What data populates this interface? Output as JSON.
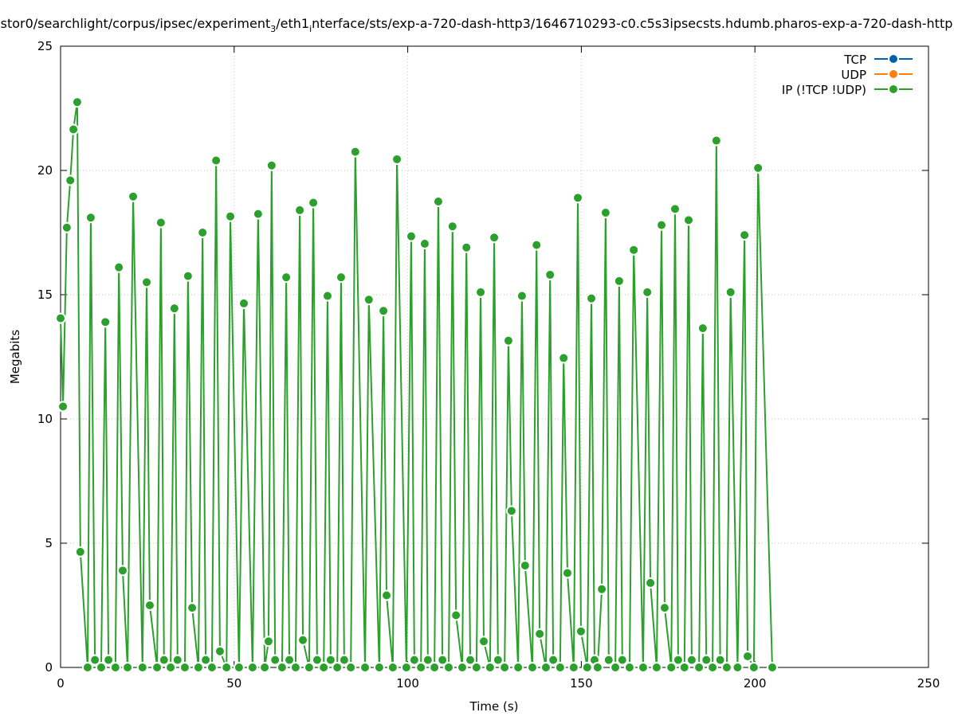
{
  "chart_data": {
    "type": "line",
    "title_parts": [
      {
        "text": "stor0/searchlight/corpus/ipsec/experiment",
        "sub": false
      },
      {
        "text": "3",
        "sub": true
      },
      {
        "text": "/eth1",
        "sub": false
      },
      {
        "text": "i",
        "sub": true
      },
      {
        "text": "nterface/sts/exp-a-720-dash-http3/1646710293-c0.c5s3ipsecsts.hdumb.pharos-exp-a-720-dash-http",
        "sub": false
      }
    ],
    "xlabel": "Time (s)",
    "ylabel": "Megabits",
    "xlim": [
      0,
      250
    ],
    "ylim": [
      0,
      25
    ],
    "xticks": [
      "0",
      "50",
      "100",
      "150",
      "200",
      "250"
    ],
    "yticks": [
      "0",
      "5",
      "10",
      "15",
      "20",
      "25"
    ],
    "grid": true,
    "legend_position": "top-right",
    "series": [
      {
        "name": "TCP",
        "color": "#0060ad",
        "x": [],
        "y": []
      },
      {
        "name": "UDP",
        "color": "#ff7f0e",
        "x": [],
        "y": []
      },
      {
        "name": "IP (!TCP  !UDP)",
        "color": "#2ca02c",
        "x": [
          0,
          0.7,
          1.8,
          2.8,
          3.7,
          4.8,
          5.7,
          7.8,
          8.7,
          9.9,
          11.7,
          12.9,
          13.8,
          15.8,
          16.8,
          17.9,
          19.3,
          20.9,
          23.6,
          24.8,
          25.7,
          27.8,
          28.9,
          29.8,
          31.7,
          32.8,
          33.7,
          35.8,
          36.7,
          37.9,
          39.7,
          40.9,
          41.8,
          43.6,
          44.8,
          45.9,
          47.8,
          48.9,
          51.4,
          52.8,
          55.3,
          56.9,
          58.8,
          59.9,
          60.8,
          61.8,
          63.8,
          65.0,
          65.9,
          67.7,
          68.9,
          69.8,
          71.6,
          72.8,
          73.9,
          75.8,
          76.9,
          77.8,
          79.7,
          80.8,
          81.7,
          83.6,
          84.9,
          87.7,
          88.8,
          91.8,
          93.0,
          93.9,
          95.7,
          96.9,
          99.6,
          101.0,
          101.9,
          103.8,
          104.9,
          105.8,
          107.7,
          108.8,
          110.0,
          111.8,
          112.9,
          113.9,
          115.7,
          116.9,
          118.0,
          119.8,
          121.0,
          121.9,
          123.7,
          124.9,
          126.0,
          127.9,
          129.0,
          129.9,
          131.8,
          132.9,
          133.8,
          135.9,
          137.1,
          138.0,
          139.8,
          141.0,
          141.9,
          143.9,
          144.9,
          146.0,
          147.8,
          149.0,
          149.9,
          151.7,
          152.9,
          153.8,
          154.7,
          155.9,
          157.0,
          157.9,
          159.8,
          160.9,
          161.8,
          163.9,
          165.1,
          167.8,
          169.0,
          169.9,
          171.7,
          173.1,
          174.0,
          175.9,
          177.0,
          177.9,
          179.7,
          180.9,
          181.8,
          183.9,
          185.0,
          186.0,
          187.8,
          188.9,
          190.0,
          191.9,
          193.0,
          195.0,
          197.0,
          197.9,
          199.7,
          200.9,
          205.0
        ],
        "y": [
          14.05,
          10.5,
          17.7,
          19.6,
          21.65,
          22.75,
          4.65,
          0,
          18.1,
          0.3,
          0,
          13.9,
          0.3,
          0,
          16.1,
          3.9,
          0,
          18.95,
          0,
          15.5,
          2.5,
          0,
          17.9,
          0.3,
          0,
          14.45,
          0.3,
          0,
          15.75,
          2.4,
          0,
          17.5,
          0.3,
          0,
          20.4,
          0.65,
          0,
          18.15,
          0,
          14.65,
          0,
          18.25,
          0,
          1.05,
          20.2,
          0.3,
          0,
          15.7,
          0.3,
          0,
          18.4,
          1.1,
          0,
          18.7,
          0.3,
          0,
          14.95,
          0.3,
          0,
          15.7,
          0.3,
          0,
          20.75,
          0,
          14.8,
          0,
          14.35,
          2.9,
          0,
          20.45,
          0,
          17.35,
          0.3,
          0,
          17.05,
          0.3,
          0,
          18.75,
          0.3,
          0,
          17.75,
          2.1,
          0,
          16.9,
          0.3,
          0,
          15.1,
          1.05,
          0,
          17.3,
          0.3,
          0,
          13.15,
          6.3,
          0,
          14.95,
          4.1,
          0,
          17.0,
          1.35,
          0,
          15.8,
          0.3,
          0,
          12.45,
          3.8,
          0,
          18.9,
          1.45,
          0,
          14.85,
          0.3,
          0,
          3.15,
          18.3,
          0.3,
          0,
          15.55,
          0.3,
          0,
          16.8,
          0,
          15.1,
          3.4,
          0,
          17.8,
          2.4,
          0,
          18.45,
          0.3,
          0,
          18.0,
          0.3,
          0,
          13.65,
          0.3,
          0,
          21.2,
          0.3,
          0,
          15.1,
          0,
          17.4,
          0.45,
          0,
          20.1,
          0
        ]
      }
    ]
  }
}
